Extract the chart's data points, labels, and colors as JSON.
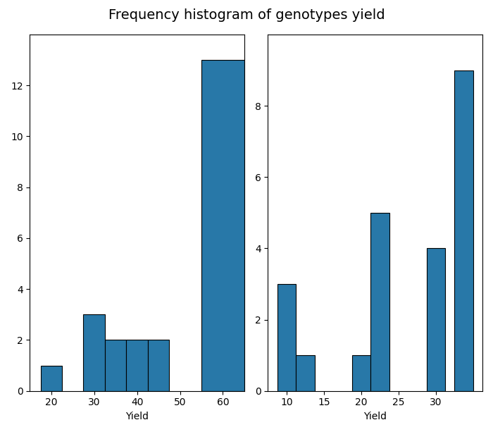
{
  "title": "Frequency histogram of genotypes yield",
  "title_fontsize": 14,
  "bar_color": "#2878a8",
  "bar_edgecolor": "black",
  "bar_linewidth": 0.8,
  "left": {
    "bar_lefts": [
      17.5,
      27.5,
      32.5,
      37.5,
      42.5,
      55.0
    ],
    "bar_widths": [
      5,
      5,
      5,
      5,
      5,
      10.0
    ],
    "bar_heights": [
      1,
      3,
      2,
      2,
      2,
      13
    ],
    "xlabel": "Yield",
    "xticks": [
      20,
      30,
      40,
      50,
      60
    ],
    "xlim": [
      15,
      65
    ],
    "yticks": [
      0,
      2,
      4,
      6,
      8,
      10,
      12
    ],
    "ylim": [
      0,
      14
    ]
  },
  "right": {
    "bar_lefts": [
      8.75,
      11.25,
      18.75,
      21.25,
      28.75,
      32.5
    ],
    "bar_widths": [
      2.5,
      2.5,
      2.5,
      2.5,
      2.5,
      2.5
    ],
    "bar_heights": [
      3,
      1,
      1,
      5,
      4,
      9
    ],
    "xlabel": "Yield",
    "xticks": [
      10,
      15,
      20,
      25,
      30
    ],
    "xlim": [
      7.5,
      36.25
    ],
    "yticks": [
      0,
      2,
      4,
      6,
      8
    ],
    "ylim": [
      0,
      10
    ]
  }
}
